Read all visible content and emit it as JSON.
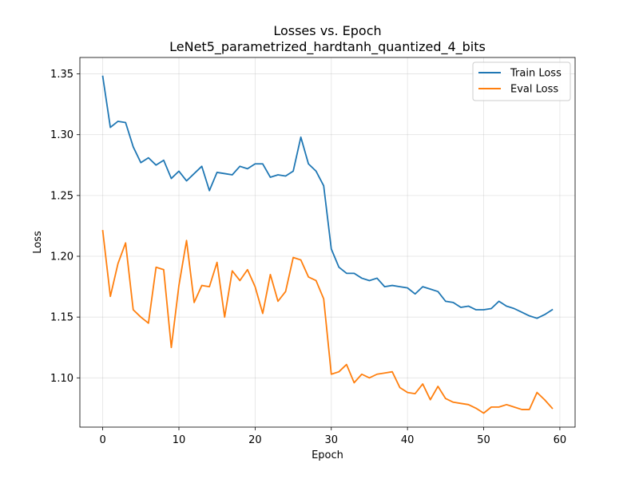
{
  "chart_data": {
    "type": "line",
    "title": "Losses vs. Epoch",
    "subtitle": "LeNet5_parametrized_hardtanh_quantized_4_bits",
    "xlabel": "Epoch",
    "ylabel": "Loss",
    "xlim": [
      -3,
      62
    ],
    "ylim": [
      1.0595,
      1.3635
    ],
    "x_ticks": [
      0,
      10,
      20,
      30,
      40,
      50,
      60
    ],
    "y_ticks": [
      1.1,
      1.15,
      1.2,
      1.25,
      1.3,
      1.35
    ],
    "grid": true,
    "legend_position": "top-right",
    "x": [
      0,
      1,
      2,
      3,
      4,
      5,
      6,
      7,
      8,
      9,
      10,
      11,
      12,
      13,
      14,
      15,
      16,
      17,
      18,
      19,
      20,
      21,
      22,
      23,
      24,
      25,
      26,
      27,
      28,
      29,
      30,
      31,
      32,
      33,
      34,
      35,
      36,
      37,
      38,
      39,
      40,
      41,
      42,
      43,
      44,
      45,
      46,
      47,
      48,
      49,
      50,
      51,
      52,
      53,
      54,
      55,
      56,
      57,
      58,
      59
    ],
    "series": [
      {
        "name": "Train Loss",
        "color": "#1f77b4",
        "values": [
          1.348,
          1.306,
          1.311,
          1.31,
          1.29,
          1.277,
          1.281,
          1.275,
          1.279,
          1.264,
          1.27,
          1.262,
          1.268,
          1.274,
          1.254,
          1.269,
          1.268,
          1.267,
          1.274,
          1.272,
          1.276,
          1.276,
          1.265,
          1.267,
          1.266,
          1.27,
          1.298,
          1.276,
          1.27,
          1.258,
          1.206,
          1.191,
          1.186,
          1.186,
          1.182,
          1.18,
          1.182,
          1.175,
          1.176,
          1.175,
          1.174,
          1.169,
          1.175,
          1.173,
          1.171,
          1.163,
          1.162,
          1.158,
          1.159,
          1.156,
          1.156,
          1.157,
          1.163,
          1.159,
          1.157,
          1.154,
          1.151,
          1.149,
          1.152,
          1.156
        ]
      },
      {
        "name": "Eval Loss",
        "color": "#ff7f0e",
        "values": [
          1.221,
          1.167,
          1.194,
          1.211,
          1.156,
          1.15,
          1.145,
          1.191,
          1.189,
          1.125,
          1.176,
          1.213,
          1.162,
          1.176,
          1.175,
          1.195,
          1.15,
          1.188,
          1.18,
          1.189,
          1.175,
          1.153,
          1.185,
          1.163,
          1.171,
          1.199,
          1.197,
          1.183,
          1.18,
          1.165,
          1.103,
          1.105,
          1.111,
          1.096,
          1.103,
          1.1,
          1.103,
          1.104,
          1.105,
          1.092,
          1.088,
          1.087,
          1.095,
          1.082,
          1.093,
          1.083,
          1.08,
          1.079,
          1.078,
          1.075,
          1.071,
          1.076,
          1.076,
          1.078,
          1.076,
          1.074,
          1.074,
          1.088,
          1.082,
          1.075
        ]
      }
    ]
  }
}
